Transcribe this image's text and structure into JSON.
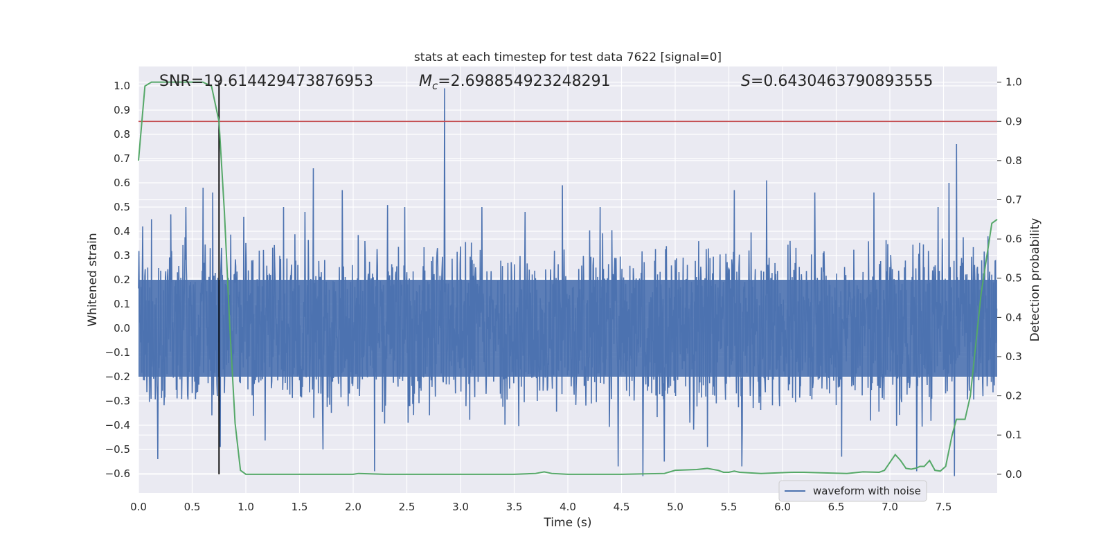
{
  "chart_data": {
    "type": "line",
    "title": "stats at each timestep for test data 7622 [signal=0]",
    "xlabel": "Time (s)",
    "ylabel_left": "Whitened strain",
    "ylabel_right": "Detection probability",
    "xlim": [
      0,
      8.0
    ],
    "ylim_left": [
      -0.68,
      1.08
    ],
    "ylim_right": [
      -0.048,
      1.04
    ],
    "x_ticks": [
      "0.0",
      "0.5",
      "1.0",
      "1.5",
      "2.0",
      "2.5",
      "3.0",
      "3.5",
      "4.0",
      "4.5",
      "5.0",
      "5.5",
      "6.0",
      "6.5",
      "7.0",
      "7.5"
    ],
    "x_tick_values": [
      0,
      0.5,
      1,
      1.5,
      2,
      2.5,
      3,
      3.5,
      4,
      4.5,
      5,
      5.5,
      6,
      6.5,
      7,
      7.5
    ],
    "y_ticks_left": [
      "1.0",
      "0.9",
      "0.8",
      "0.7",
      "0.6",
      "0.5",
      "0.4",
      "0.3",
      "0.2",
      "0.1",
      "0.0",
      "−0.1",
      "−0.2",
      "−0.3",
      "−0.4",
      "−0.5",
      "−0.6"
    ],
    "y_tick_values_left": [
      1.0,
      0.9,
      0.8,
      0.7,
      0.6,
      0.5,
      0.4,
      0.3,
      0.2,
      0.1,
      0.0,
      -0.1,
      -0.2,
      -0.3,
      -0.4,
      -0.5,
      -0.6
    ],
    "y_ticks_right": [
      "1.0",
      "0.9",
      "0.8",
      "0.7",
      "0.6",
      "0.5",
      "0.4",
      "0.3",
      "0.2",
      "0.1",
      "0.0"
    ],
    "y_tick_values_right": [
      1.0,
      0.9,
      0.8,
      0.7,
      0.6,
      0.5,
      0.4,
      0.3,
      0.2,
      0.1,
      0.0
    ],
    "stats": {
      "snr": "SNR=19.614429473876953",
      "mc_symbol": "M",
      "mc_sub": "c",
      "mc_value": "=2.698854923248291",
      "s_symbol": "S",
      "s_value": "=0.6430463790893555"
    },
    "threshold": 0.9,
    "marker_time": 0.75,
    "legend": [
      {
        "label": "waveform with noise",
        "color": "#4c72b0"
      }
    ],
    "series": [
      {
        "name": "waveform with noise",
        "axis": "left",
        "color": "#4c72b0",
        "sample_rate": 256,
        "duration": 8.0,
        "core_amplitude": 0.2,
        "spikes": [
          {
            "t": 0.04,
            "v": 0.42
          },
          {
            "t": 0.12,
            "v": 0.45
          },
          {
            "t": 0.18,
            "v": -0.54
          },
          {
            "t": 0.3,
            "v": 0.47
          },
          {
            "t": 0.44,
            "v": 0.5
          },
          {
            "t": 0.6,
            "v": 0.58
          },
          {
            "t": 0.69,
            "v": 0.56
          },
          {
            "t": 0.76,
            "v": -0.49
          },
          {
            "t": 0.98,
            "v": 0.46
          },
          {
            "t": 1.35,
            "v": 0.5
          },
          {
            "t": 1.55,
            "v": 0.48
          },
          {
            "t": 1.63,
            "v": 0.66
          },
          {
            "t": 1.72,
            "v": -0.5
          },
          {
            "t": 1.9,
            "v": 0.57
          },
          {
            "t": 2.2,
            "v": -0.59
          },
          {
            "t": 2.48,
            "v": 0.5
          },
          {
            "t": 2.85,
            "v": 0.99
          },
          {
            "t": 3.2,
            "v": 0.5
          },
          {
            "t": 3.6,
            "v": 0.48
          },
          {
            "t": 3.95,
            "v": 0.59
          },
          {
            "t": 4.3,
            "v": 0.5
          },
          {
            "t": 4.47,
            "v": -0.57
          },
          {
            "t": 4.7,
            "v": -0.61
          },
          {
            "t": 4.9,
            "v": -0.55
          },
          {
            "t": 5.3,
            "v": -0.49
          },
          {
            "t": 5.55,
            "v": 0.57
          },
          {
            "t": 5.62,
            "v": -0.57
          },
          {
            "t": 5.85,
            "v": 0.61
          },
          {
            "t": 6.3,
            "v": 0.56
          },
          {
            "t": 6.55,
            "v": -0.53
          },
          {
            "t": 6.85,
            "v": 0.56
          },
          {
            "t": 7.25,
            "v": -0.59
          },
          {
            "t": 7.45,
            "v": 0.5
          },
          {
            "t": 7.6,
            "v": -0.61
          },
          {
            "t": 7.62,
            "v": 0.76
          },
          {
            "t": 7.55,
            "v": 0.6
          }
        ]
      },
      {
        "name": "detection probability",
        "axis": "right",
        "color": "#55a868",
        "x": [
          0.0,
          0.06,
          0.12,
          0.2,
          0.4,
          0.6,
          0.68,
          0.75,
          0.8,
          0.85,
          0.9,
          0.95,
          1.0,
          1.5,
          2.0,
          2.05,
          2.3,
          3.0,
          3.5,
          3.7,
          3.78,
          3.85,
          4.0,
          4.5,
          4.9,
          5.0,
          5.2,
          5.3,
          5.4,
          5.45,
          5.5,
          5.55,
          5.6,
          5.8,
          6.1,
          6.2,
          6.3,
          6.6,
          6.75,
          6.9,
          6.95,
          7.0,
          7.05,
          7.1,
          7.15,
          7.2,
          7.25,
          7.28,
          7.32,
          7.37,
          7.42,
          7.47,
          7.52,
          7.58,
          7.62,
          7.67,
          7.7,
          7.75,
          7.8,
          7.85,
          7.9,
          7.95,
          8.0
        ],
        "y": [
          0.8,
          0.99,
          1.0,
          1.0,
          1.0,
          1.0,
          0.99,
          0.9,
          0.67,
          0.38,
          0.13,
          0.01,
          0.0,
          0.0,
          0.0,
          0.002,
          0.0,
          0.0,
          0.0,
          0.002,
          0.006,
          0.002,
          0.0,
          0.0,
          0.002,
          0.01,
          0.012,
          0.015,
          0.01,
          0.005,
          0.005,
          0.008,
          0.005,
          0.002,
          0.005,
          0.005,
          0.004,
          0.002,
          0.006,
          0.005,
          0.01,
          0.03,
          0.05,
          0.035,
          0.015,
          0.013,
          0.016,
          0.02,
          0.02,
          0.035,
          0.01,
          0.008,
          0.02,
          0.1,
          0.14,
          0.14,
          0.14,
          0.2,
          0.33,
          0.46,
          0.55,
          0.64,
          0.65
        ]
      }
    ]
  }
}
